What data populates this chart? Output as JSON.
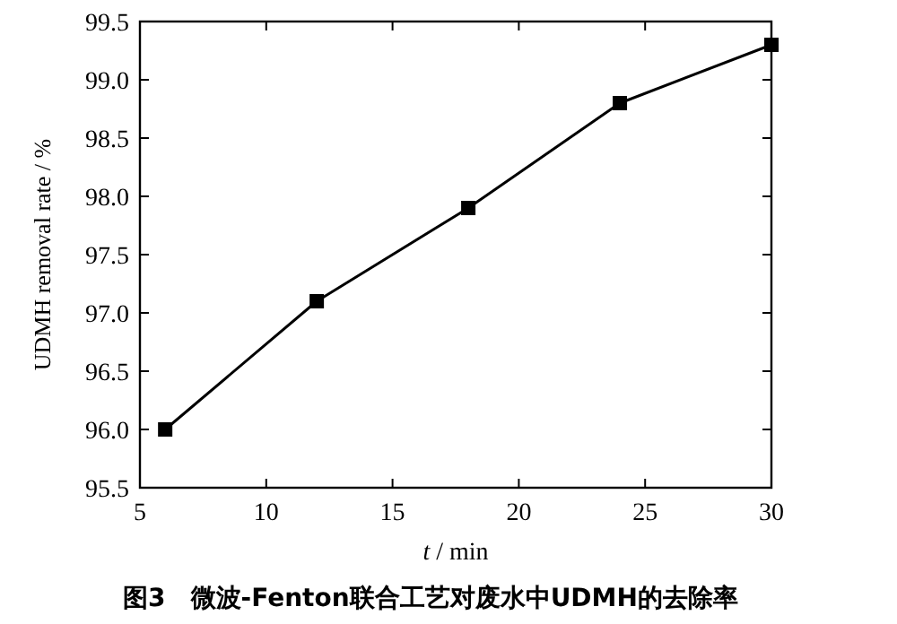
{
  "chart_data": {
    "type": "line",
    "xlabel": "t / min",
    "ylabel": "UDMH removal rate / %",
    "annotations": [
      "图3　微波-Fenton联合工艺对废水中UDMH的去除率"
    ],
    "x": [
      6,
      12,
      18,
      24,
      30
    ],
    "series": [
      {
        "color": "#000000",
        "values": [
          96.0,
          97.1,
          97.9,
          98.8,
          99.3
        ]
      }
    ],
    "xlim": [
      5,
      30
    ],
    "xticks": [
      5,
      10,
      15,
      20,
      25,
      30
    ],
    "ylim": [
      95.5,
      99.5
    ],
    "yticks": [
      95.5,
      {
        "value": 96,
        "label": "96.0"
      },
      96.5,
      {
        "value": 97,
        "label": "97.0"
      },
      97.5,
      {
        "value": 98,
        "label": "98.0"
      },
      98.5,
      {
        "value": 99,
        "label": "99.0"
      },
      99.5
    ],
    "marker": "square",
    "line_style": "solid",
    "grid": false
  }
}
